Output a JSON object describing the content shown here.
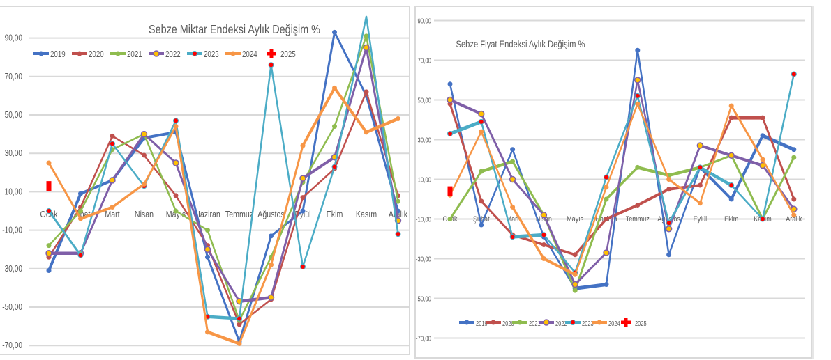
{
  "chart_data": [
    {
      "type": "line",
      "title": "Sebze Miktar Endeksi Aylık Değişim %",
      "xlabel": "",
      "ylabel": "",
      "ylim": [
        -70,
        90
      ],
      "yticks": [
        "90,00",
        "70,00",
        "50,00",
        "30,00",
        "10,00",
        "-10,00",
        "-30,00",
        "-50,00",
        "-70,00"
      ],
      "ytick_values": [
        90,
        70,
        50,
        30,
        10,
        -10,
        -30,
        -50,
        -70
      ],
      "grid": true,
      "legend_position": "top-left",
      "categories": [
        "Ocak",
        "Şubat",
        "Mart",
        "Nisan",
        "Mayıs",
        "Haziran",
        "Temmuz",
        "Ağustos",
        "Eylül",
        "Ekim",
        "Kasım",
        "Aralık"
      ],
      "series": [
        {
          "name": "2019",
          "color": "#4472c4",
          "values": [
            -31,
            9,
            16,
            38,
            41,
            -24,
            -68,
            -13,
            0,
            93,
            60,
            0
          ]
        },
        {
          "name": "2020",
          "color": "#c0504d",
          "values": [
            -24,
            2,
            39,
            29,
            8,
            -18,
            -59,
            -46,
            7,
            22,
            62,
            8
          ]
        },
        {
          "name": "2021",
          "color": "#8fbc4f",
          "values": [
            -18,
            0,
            32,
            40,
            0,
            -10,
            -57,
            -24,
            15,
            44,
            91,
            5
          ]
        },
        {
          "name": "2022",
          "color": "#7f5fa8",
          "values": [
            -22,
            -22,
            16,
            40,
            25,
            -20,
            -47,
            -45,
            17,
            28,
            85,
            -5
          ]
        },
        {
          "name": "2023",
          "color": "#4bacc6",
          "values": [
            0,
            -23,
            35,
            13,
            47,
            -55,
            -56,
            76,
            -29,
            23,
            108,
            -12
          ]
        },
        {
          "name": "2024",
          "color": "#f79646",
          "values": [
            25,
            -4,
            2,
            14,
            44,
            -63,
            -69,
            -28,
            34,
            64,
            41,
            48
          ]
        },
        {
          "name": "2025",
          "color": "#ff0000",
          "values": [
            13,
            null,
            null,
            null,
            null,
            null,
            null,
            null,
            null,
            null,
            null,
            null
          ]
        }
      ]
    },
    {
      "type": "line",
      "title": "Sebze Fiyat Endeksi Aylık Değişim %",
      "xlabel": "",
      "ylabel": "",
      "ylim": [
        -70,
        90
      ],
      "yticks": [
        "90,00",
        "70,00",
        "50,00",
        "30,00",
        "10,00",
        "-10,00",
        "-30,00",
        "-50,00",
        "-70,00"
      ],
      "ytick_values": [
        90,
        70,
        50,
        30,
        10,
        -10,
        -30,
        -50,
        -70
      ],
      "grid": true,
      "legend_position": "bottom",
      "categories": [
        "Ocak",
        "Şubat",
        "Mart",
        "Nisan",
        "Mayıs",
        "Haziran",
        "Temmuz",
        "Ağustos",
        "Eylül",
        "Ekim",
        "Kasım",
        "Aralık"
      ],
      "series": [
        {
          "name": "2019",
          "color": "#4472c4",
          "values": [
            58,
            -13,
            25,
            -19,
            -45,
            -43,
            75,
            -28,
            16,
            0,
            32,
            25
          ]
        },
        {
          "name": "2020",
          "color": "#c0504d",
          "values": [
            48,
            -1,
            -18,
            -23,
            -28,
            -10,
            -3,
            5,
            7,
            41,
            41,
            0
          ]
        },
        {
          "name": "2021",
          "color": "#8fbc4f",
          "values": [
            -10,
            14,
            19,
            -8,
            -46,
            0,
            16,
            12,
            16,
            22,
            -10,
            21
          ]
        },
        {
          "name": "2022",
          "color": "#7f5fa8",
          "values": [
            50,
            43,
            10,
            -8,
            -43,
            -27,
            60,
            -15,
            27,
            22,
            17,
            -5
          ]
        },
        {
          "name": "2023",
          "color": "#4bacc6",
          "values": [
            33,
            39,
            -19,
            -18,
            -37,
            11,
            52,
            -12,
            16,
            7,
            -10,
            63
          ]
        },
        {
          "name": "2024",
          "color": "#f79646",
          "values": [
            2,
            34,
            -4,
            -30,
            -38,
            6,
            48,
            10,
            -2,
            47,
            20,
            -8
          ]
        },
        {
          "name": "2025",
          "color": "#ff0000",
          "values": [
            4,
            null,
            null,
            null,
            null,
            null,
            null,
            null,
            null,
            null,
            null,
            null
          ]
        }
      ]
    }
  ]
}
